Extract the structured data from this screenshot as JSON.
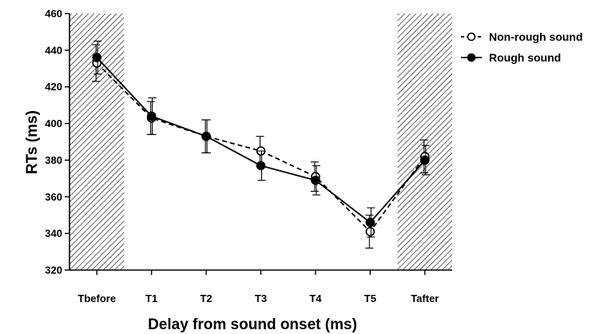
{
  "chart_data": {
    "type": "line",
    "xlabel": "Delay from sound onset (ms)",
    "ylabel": "RTs (ms)",
    "ylim": [
      320,
      460
    ],
    "yticks": [
      320,
      340,
      360,
      380,
      400,
      420,
      440,
      460
    ],
    "categories": [
      "Tbefore",
      "T1",
      "T2",
      "T3",
      "T4",
      "T5",
      "Tafter"
    ],
    "shaded_categories": [
      "Tbefore",
      "Tafter"
    ],
    "grid": false,
    "legend_position": "top-right",
    "series": [
      {
        "name": "Non-rough sound",
        "style": "dashed-open-circle",
        "color": "#000000",
        "values": [
          433,
          403,
          393,
          385,
          371,
          341,
          382
        ],
        "errors": [
          10,
          9,
          9,
          8,
          8,
          9,
          9
        ]
      },
      {
        "name": "Rough sound",
        "style": "solid-filled-circle",
        "color": "#000000",
        "values": [
          436,
          404,
          393,
          377,
          369,
          346,
          380
        ],
        "errors": [
          9,
          10,
          9,
          8,
          8,
          8,
          8
        ]
      }
    ]
  }
}
